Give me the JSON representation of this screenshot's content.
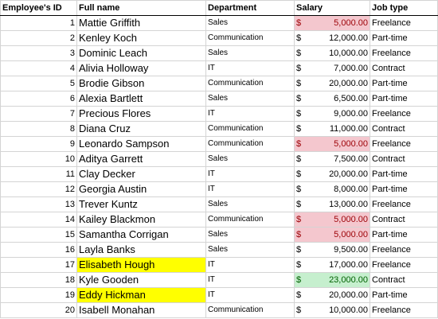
{
  "headers": {
    "id": "Employee's ID",
    "name": "Full name",
    "department": "Department",
    "salary": "Salary",
    "job": "Job type"
  },
  "currency_symbol": "$",
  "colors": {
    "name_highlight": "#ffff00",
    "salary_low_fill": "#f4c7ce",
    "salary_low_text": "#9c0006",
    "salary_high_fill": "#c6efce",
    "salary_high_text": "#006100"
  },
  "rows": [
    {
      "id": "1",
      "name": "Mattie Griffith",
      "department": "Sales",
      "salary": "5,000.00",
      "job": "Freelance",
      "salary_flag": "low",
      "name_highlight": false
    },
    {
      "id": "2",
      "name": "Kenley Koch",
      "department": "Communication",
      "salary": "12,000.00",
      "job": "Part-time",
      "salary_flag": "",
      "name_highlight": false
    },
    {
      "id": "3",
      "name": "Dominic Leach",
      "department": "Sales",
      "salary": "10,000.00",
      "job": "Freelance",
      "salary_flag": "",
      "name_highlight": false
    },
    {
      "id": "4",
      "name": "Alivia Holloway",
      "department": "IT",
      "salary": "7,000.00",
      "job": "Contract",
      "salary_flag": "",
      "name_highlight": false
    },
    {
      "id": "5",
      "name": "Brodie Gibson",
      "department": "Communication",
      "salary": "20,000.00",
      "job": "Part-time",
      "salary_flag": "",
      "name_highlight": false
    },
    {
      "id": "6",
      "name": "Alexia Bartlett",
      "department": "Sales",
      "salary": "6,500.00",
      "job": "Part-time",
      "salary_flag": "",
      "name_highlight": false
    },
    {
      "id": "7",
      "name": "Precious Flores",
      "department": "IT",
      "salary": "9,000.00",
      "job": "Freelance",
      "salary_flag": "",
      "name_highlight": false
    },
    {
      "id": "8",
      "name": "Diana Cruz",
      "department": "Communication",
      "salary": "11,000.00",
      "job": "Contract",
      "salary_flag": "",
      "name_highlight": false
    },
    {
      "id": "9",
      "name": "Leonardo Sampson",
      "department": "Communication",
      "salary": "5,000.00",
      "job": "Freelance",
      "salary_flag": "low",
      "name_highlight": false
    },
    {
      "id": "10",
      "name": "Aditya Garrett",
      "department": "Sales",
      "salary": "7,500.00",
      "job": "Contract",
      "salary_flag": "",
      "name_highlight": false
    },
    {
      "id": "11",
      "name": "Clay Decker",
      "department": "IT",
      "salary": "20,000.00",
      "job": "Part-time",
      "salary_flag": "",
      "name_highlight": false
    },
    {
      "id": "12",
      "name": "Georgia Austin",
      "department": "IT",
      "salary": "8,000.00",
      "job": "Part-time",
      "salary_flag": "",
      "name_highlight": false
    },
    {
      "id": "13",
      "name": "Trever Kuntz",
      "department": "Sales",
      "salary": "13,000.00",
      "job": "Freelance",
      "salary_flag": "",
      "name_highlight": false
    },
    {
      "id": "14",
      "name": "Kailey Blackmon",
      "department": "Communication",
      "salary": "5,000.00",
      "job": "Contract",
      "salary_flag": "low",
      "name_highlight": false
    },
    {
      "id": "15",
      "name": "Samantha Corrigan",
      "department": "Sales",
      "salary": "5,000.00",
      "job": "Part-time",
      "salary_flag": "low",
      "name_highlight": false
    },
    {
      "id": "16",
      "name": "Layla Banks",
      "department": "Sales",
      "salary": "9,500.00",
      "job": "Freelance",
      "salary_flag": "",
      "name_highlight": false
    },
    {
      "id": "17",
      "name": "Elisabeth Hough",
      "department": "IT",
      "salary": "17,000.00",
      "job": "Freelance",
      "salary_flag": "",
      "name_highlight": true
    },
    {
      "id": "18",
      "name": "Kyle Gooden",
      "department": "IT",
      "salary": "23,000.00",
      "job": "Contract",
      "salary_flag": "high",
      "name_highlight": false
    },
    {
      "id": "19",
      "name": "Eddy Hickman",
      "department": "IT",
      "salary": "20,000.00",
      "job": "Part-time",
      "salary_flag": "",
      "name_highlight": true
    },
    {
      "id": "20",
      "name": "Isabell Monahan",
      "department": "Communication",
      "salary": "10,000.00",
      "job": "Freelance",
      "salary_flag": "",
      "name_highlight": false
    }
  ]
}
